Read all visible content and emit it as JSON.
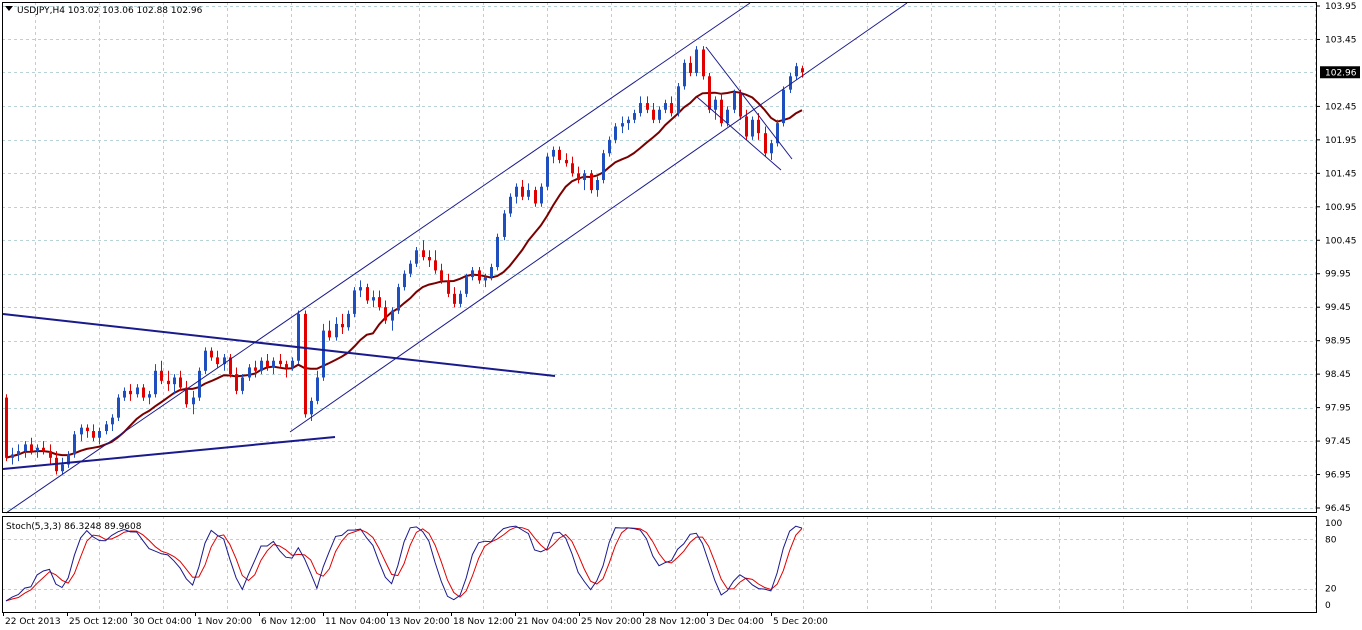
{
  "window": {
    "symbol_line": "USDJPY,H4  103.02 103.06 102.88 102.96",
    "indicator_line": "Stoch(5,3,3) 86.3248 89.9608"
  },
  "colors": {
    "background": "#ffffff",
    "grid": "#b7d3d8",
    "bull_candle": "#1f4fbf",
    "bear_candle": "#e00000",
    "moving_average": "#7a0000",
    "channel": "#1a1a8c",
    "triangle": "#1a1a8c",
    "stoch_main": "#1a1a8c",
    "stoch_signal": "#e00000",
    "price_tag_bg": "#000000",
    "price_tag_text": "#ffffff"
  },
  "chart_data": {
    "type": "candlestick",
    "symbol": "USDJPY",
    "timeframe": "H4",
    "ohlc_header": {
      "open": 103.02,
      "high": 103.06,
      "low": 102.88,
      "close": 102.96
    },
    "current_price": "102.96",
    "price_axis": {
      "ylim": [
        96.45,
        103.95
      ],
      "ticks": [
        "103.95",
        "103.45",
        "102.45",
        "101.95",
        "101.45",
        "100.95",
        "100.45",
        "99.95",
        "99.45",
        "98.95",
        "98.45",
        "97.95",
        "97.45",
        "96.95",
        "96.45"
      ]
    },
    "time_axis": {
      "labels": [
        "22 Oct 2013",
        "25 Oct 12:00",
        "30 Oct 04:00",
        "1 Nov 20:00",
        "6 Nov 12:00",
        "11 Nov 04:00",
        "13 Nov 20:00",
        "18 Nov 12:00",
        "21 Nov 04:00",
        "25 Nov 20:00",
        "28 Nov 12:00",
        "3 Dec 04:00",
        "5 Dec 20:00"
      ]
    },
    "series": [
      {
        "kind": "candles",
        "values": [
          [
            98.1,
            98.15,
            97.15,
            97.2
          ],
          [
            97.2,
            97.35,
            97.1,
            97.25
          ],
          [
            97.25,
            97.4,
            97.15,
            97.3
          ],
          [
            97.3,
            97.45,
            97.2,
            97.4
          ],
          [
            97.4,
            97.5,
            97.25,
            97.3
          ],
          [
            97.3,
            97.4,
            97.2,
            97.35
          ],
          [
            97.35,
            97.45,
            97.25,
            97.3
          ],
          [
            97.3,
            97.4,
            97.1,
            97.2
          ],
          [
            97.2,
            97.3,
            96.95,
            97.0
          ],
          [
            97.0,
            97.2,
            96.95,
            97.1
          ],
          [
            97.1,
            97.3,
            97.05,
            97.25
          ],
          [
            97.25,
            97.6,
            97.2,
            97.55
          ],
          [
            97.55,
            97.7,
            97.45,
            97.65
          ],
          [
            97.65,
            97.7,
            97.5,
            97.6
          ],
          [
            97.6,
            97.7,
            97.45,
            97.5
          ],
          [
            97.5,
            97.65,
            97.4,
            97.6
          ],
          [
            97.6,
            97.75,
            97.55,
            97.7
          ],
          [
            97.7,
            97.85,
            97.6,
            97.8
          ],
          [
            97.8,
            98.15,
            97.75,
            98.1
          ],
          [
            98.1,
            98.25,
            98.05,
            98.2
          ],
          [
            98.2,
            98.3,
            98.05,
            98.15
          ],
          [
            98.15,
            98.3,
            98.1,
            98.25
          ],
          [
            98.25,
            98.3,
            98.05,
            98.1
          ],
          [
            98.1,
            98.2,
            98.0,
            98.15
          ],
          [
            98.15,
            98.6,
            98.1,
            98.5
          ],
          [
            98.5,
            98.65,
            98.3,
            98.35
          ],
          [
            98.35,
            98.5,
            98.2,
            98.3
          ],
          [
            98.3,
            98.45,
            98.15,
            98.4
          ],
          [
            98.4,
            98.5,
            98.2,
            98.25
          ],
          [
            98.25,
            98.35,
            97.95,
            98.0
          ],
          [
            98.0,
            98.2,
            97.85,
            98.1
          ],
          [
            98.1,
            98.55,
            98.05,
            98.5
          ],
          [
            98.5,
            98.85,
            98.45,
            98.8
          ],
          [
            98.8,
            98.85,
            98.65,
            98.7
          ],
          [
            98.7,
            98.8,
            98.55,
            98.6
          ],
          [
            98.6,
            98.75,
            98.5,
            98.7
          ],
          [
            98.7,
            98.75,
            98.4,
            98.45
          ],
          [
            98.45,
            98.55,
            98.15,
            98.2
          ],
          [
            98.2,
            98.45,
            98.15,
            98.4
          ],
          [
            98.4,
            98.6,
            98.35,
            98.55
          ],
          [
            98.55,
            98.65,
            98.4,
            98.5
          ],
          [
            98.5,
            98.7,
            98.45,
            98.65
          ],
          [
            98.65,
            98.75,
            98.5,
            98.55
          ],
          [
            98.55,
            98.7,
            98.45,
            98.65
          ],
          [
            98.65,
            98.75,
            98.55,
            98.6
          ],
          [
            98.6,
            98.65,
            98.4,
            98.55
          ],
          [
            98.55,
            98.7,
            98.5,
            98.65
          ],
          [
            98.65,
            99.4,
            98.6,
            99.35
          ],
          [
            99.35,
            99.4,
            97.8,
            97.85
          ],
          [
            97.85,
            98.1,
            97.75,
            98.05
          ],
          [
            98.05,
            98.5,
            98.0,
            98.4
          ],
          [
            98.4,
            99.2,
            98.35,
            99.1
          ],
          [
            99.1,
            99.25,
            98.95,
            99.0
          ],
          [
            99.0,
            99.3,
            98.95,
            99.2
          ],
          [
            99.2,
            99.35,
            99.05,
            99.15
          ],
          [
            99.15,
            99.4,
            99.1,
            99.35
          ],
          [
            99.35,
            99.75,
            99.3,
            99.7
          ],
          [
            99.7,
            99.85,
            99.6,
            99.75
          ],
          [
            99.75,
            99.8,
            99.5,
            99.55
          ],
          [
            99.55,
            99.7,
            99.45,
            99.6
          ],
          [
            99.6,
            99.7,
            99.4,
            99.45
          ],
          [
            99.45,
            99.55,
            99.2,
            99.25
          ],
          [
            99.25,
            99.45,
            99.1,
            99.4
          ],
          [
            99.4,
            99.8,
            99.35,
            99.75
          ],
          [
            99.75,
            100.0,
            99.7,
            99.95
          ],
          [
            99.95,
            100.15,
            99.9,
            100.1
          ],
          [
            100.1,
            100.35,
            100.05,
            100.3
          ],
          [
            100.3,
            100.45,
            100.15,
            100.2
          ],
          [
            100.2,
            100.3,
            100.05,
            100.15
          ],
          [
            100.15,
            100.3,
            99.95,
            100.0
          ],
          [
            100.0,
            100.1,
            99.8,
            99.85
          ],
          [
            99.85,
            99.95,
            99.6,
            99.65
          ],
          [
            99.65,
            99.75,
            99.45,
            99.5
          ],
          [
            99.5,
            99.7,
            99.45,
            99.65
          ],
          [
            99.65,
            99.95,
            99.6,
            99.9
          ],
          [
            99.9,
            100.05,
            99.85,
            100.0
          ],
          [
            100.0,
            100.05,
            99.8,
            99.85
          ],
          [
            99.85,
            99.95,
            99.75,
            99.9
          ],
          [
            99.9,
            100.1,
            99.85,
            100.05
          ],
          [
            100.05,
            100.55,
            100.0,
            100.5
          ],
          [
            100.5,
            100.9,
            100.45,
            100.85
          ],
          [
            100.85,
            101.15,
            100.8,
            101.1
          ],
          [
            101.1,
            101.3,
            101.0,
            101.25
          ],
          [
            101.25,
            101.35,
            101.05,
            101.1
          ],
          [
            101.1,
            101.3,
            101.05,
            101.2
          ],
          [
            101.2,
            101.25,
            100.95,
            101.0
          ],
          [
            101.0,
            101.3,
            100.95,
            101.25
          ],
          [
            101.25,
            101.75,
            101.2,
            101.7
          ],
          [
            101.7,
            101.85,
            101.6,
            101.8
          ],
          [
            101.8,
            101.85,
            101.6,
            101.65
          ],
          [
            101.65,
            101.75,
            101.55,
            101.6
          ],
          [
            101.6,
            101.7,
            101.4,
            101.45
          ],
          [
            101.45,
            101.55,
            101.3,
            101.35
          ],
          [
            101.35,
            101.5,
            101.2,
            101.45
          ],
          [
            101.45,
            101.5,
            101.15,
            101.2
          ],
          [
            101.2,
            101.4,
            101.1,
            101.35
          ],
          [
            101.35,
            101.8,
            101.3,
            101.75
          ],
          [
            101.75,
            102.0,
            101.7,
            101.95
          ],
          [
            101.95,
            102.2,
            101.9,
            102.15
          ],
          [
            102.15,
            102.3,
            102.05,
            102.2
          ],
          [
            102.2,
            102.3,
            102.1,
            102.25
          ],
          [
            102.25,
            102.4,
            102.2,
            102.35
          ],
          [
            102.35,
            102.6,
            102.3,
            102.5
          ],
          [
            102.5,
            102.6,
            102.35,
            102.4
          ],
          [
            102.4,
            102.5,
            102.2,
            102.25
          ],
          [
            102.25,
            102.45,
            102.2,
            102.4
          ],
          [
            102.4,
            102.55,
            102.35,
            102.5
          ],
          [
            102.5,
            102.6,
            102.3,
            102.35
          ],
          [
            102.35,
            102.8,
            102.3,
            102.75
          ],
          [
            102.75,
            103.15,
            102.7,
            103.1
          ],
          [
            103.1,
            103.2,
            102.9,
            102.95
          ],
          [
            102.95,
            103.35,
            102.9,
            103.3
          ],
          [
            103.3,
            103.35,
            102.85,
            102.9
          ],
          [
            102.9,
            102.95,
            102.35,
            102.4
          ],
          [
            102.4,
            102.6,
            102.25,
            102.55
          ],
          [
            102.55,
            102.65,
            102.15,
            102.2
          ],
          [
            102.2,
            102.45,
            102.15,
            102.4
          ],
          [
            102.4,
            102.7,
            102.35,
            102.65
          ],
          [
            102.65,
            102.7,
            102.25,
            102.3
          ],
          [
            102.3,
            102.4,
            101.95,
            102.0
          ],
          [
            102.0,
            102.3,
            101.95,
            102.25
          ],
          [
            102.25,
            102.35,
            101.95,
            102.05
          ],
          [
            102.05,
            102.15,
            101.7,
            101.75
          ],
          [
            101.75,
            101.95,
            101.65,
            101.9
          ],
          [
            101.9,
            102.25,
            101.85,
            102.2
          ],
          [
            102.2,
            102.75,
            102.15,
            102.7
          ],
          [
            102.7,
            102.95,
            102.65,
            102.9
          ],
          [
            102.9,
            103.1,
            102.85,
            103.05
          ],
          [
            103.02,
            103.06,
            102.88,
            102.96
          ]
        ]
      },
      {
        "kind": "moving_average"
      },
      {
        "kind": "stochastic",
        "params": "5,3,3",
        "main": 86.3248,
        "signal": 89.9608,
        "ylim": [
          0,
          100
        ],
        "ticks": [
          "100",
          "80",
          "20",
          "0"
        ]
      }
    ],
    "grid": true
  }
}
